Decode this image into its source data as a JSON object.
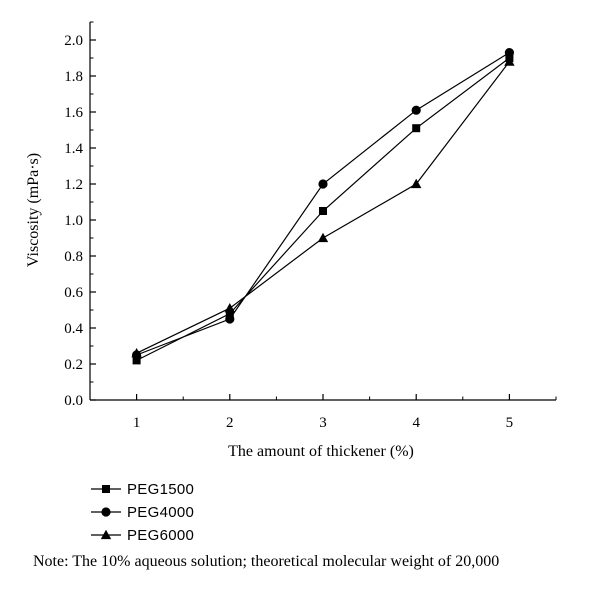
{
  "chart_data": {
    "type": "line",
    "xlabel": "The amount of thickener (%)",
    "ylabel": "Viscosity (mPa·s)",
    "x": [
      1,
      2,
      3,
      4,
      5
    ],
    "xlim": [
      0.5,
      5.5
    ],
    "ylim": [
      0.0,
      2.1
    ],
    "xticks": [
      "1",
      "2",
      "3",
      "4",
      "5"
    ],
    "yticks": [
      "0.0",
      "0.2",
      "0.4",
      "0.6",
      "0.8",
      "1.0",
      "1.2",
      "1.4",
      "1.6",
      "1.8",
      "2.0"
    ],
    "grid": false,
    "legend_position": "bottom-left",
    "series": [
      {
        "name": "PEG1500",
        "marker": "square",
        "values": [
          0.22,
          0.48,
          1.05,
          1.51,
          1.9
        ]
      },
      {
        "name": "PEG4000",
        "marker": "circle",
        "values": [
          0.25,
          0.45,
          1.2,
          1.61,
          1.93
        ]
      },
      {
        "name": "PEG6000",
        "marker": "triangle",
        "values": [
          0.26,
          0.51,
          0.9,
          1.2,
          1.88
        ]
      }
    ],
    "note": "Note: The 10% aqueous solution; theoretical molecular weight of 20,000"
  }
}
